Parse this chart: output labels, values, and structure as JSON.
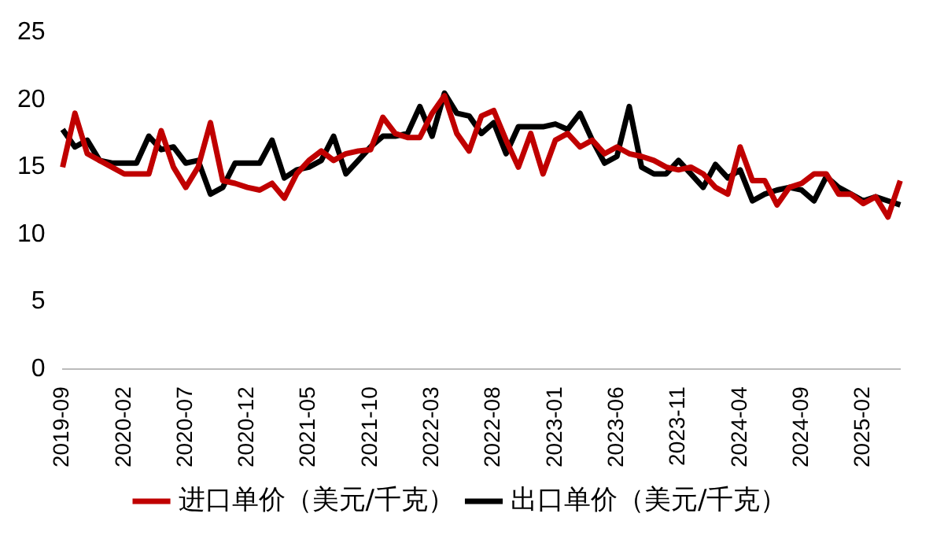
{
  "chart_data": {
    "type": "line",
    "categories": [
      "2019-09",
      null,
      null,
      null,
      null,
      "2020-02",
      null,
      null,
      null,
      null,
      "2020-07",
      null,
      null,
      null,
      null,
      "2020-12",
      null,
      null,
      null,
      null,
      "2021-05",
      null,
      null,
      null,
      null,
      "2021-10",
      null,
      null,
      null,
      null,
      "2022-03",
      null,
      null,
      null,
      null,
      "2022-08",
      null,
      null,
      null,
      null,
      "2023-01",
      null,
      null,
      null,
      null,
      "2023-06",
      null,
      null,
      null,
      null,
      "2023-11",
      null,
      null,
      null,
      null,
      "2024-04",
      null,
      null,
      null,
      null,
      "2024-09",
      null,
      null,
      null,
      null,
      "2025-02",
      null,
      null,
      null
    ],
    "series": [
      {
        "name": "进口单价（美元/千克）",
        "color": "#c00000",
        "values": [
          15,
          19,
          16,
          15.5,
          15,
          14.5,
          14.5,
          14.5,
          17.7,
          15,
          13.5,
          15,
          18.3,
          14,
          13.8,
          13.5,
          13.3,
          13.8,
          12.7,
          14.5,
          15.5,
          16.2,
          15.5,
          16,
          16.2,
          16.3,
          18.7,
          17.5,
          17.2,
          17.2,
          19,
          20.3,
          17.5,
          16.2,
          18.8,
          19.2,
          17,
          15,
          17.5,
          14.5,
          17,
          17.5,
          16.5,
          17,
          16,
          16.5,
          16,
          15.8,
          15.5,
          15,
          14.8,
          15,
          14.5,
          13.5,
          13,
          16.5,
          14,
          14,
          12.2,
          13.5,
          13.8,
          14.5,
          14.5,
          13,
          13,
          12.3,
          12.8,
          11.3,
          14
        ]
      },
      {
        "name": "出口单价（美元/千克）",
        "color": "#000000",
        "values": [
          17.8,
          16.5,
          17,
          15.5,
          15.3,
          15.3,
          15.3,
          17.3,
          16.3,
          16.5,
          15.3,
          15.5,
          13,
          13.5,
          15.3,
          15.3,
          15.3,
          17,
          14.2,
          14.8,
          15,
          15.5,
          17.3,
          14.5,
          15.5,
          16.5,
          17.3,
          17.3,
          17.5,
          19.5,
          17.3,
          20.5,
          19,
          18.8,
          17.5,
          18.3,
          16,
          18,
          18,
          18,
          18.2,
          17.8,
          19,
          17,
          15.3,
          15.8,
          19.5,
          15,
          14.5,
          14.5,
          15.5,
          14.5,
          13.5,
          15.2,
          14.2,
          14.8,
          12.5,
          13,
          13.3,
          13.5,
          13.3,
          12.5,
          14.3,
          13.5,
          13,
          12.5,
          12.8,
          12.5,
          12.2
        ]
      }
    ],
    "ylim": [
      0,
      25
    ],
    "yticks": [
      0,
      5,
      10,
      15,
      20,
      25
    ],
    "grid": false,
    "legend": "bottom",
    "marker": "none",
    "line_style": "solid"
  }
}
